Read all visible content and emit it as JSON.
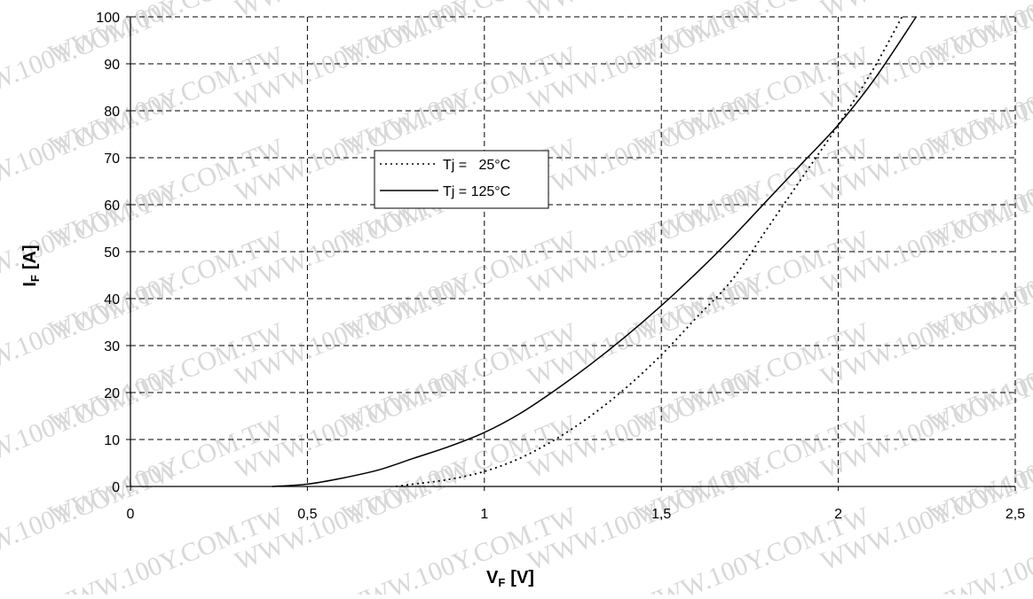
{
  "watermark": "WWW.100Y.COM.TW",
  "chart_data": {
    "type": "line",
    "title": "",
    "xlabel": {
      "main": "V",
      "sub": "F",
      "unit": "[V]"
    },
    "ylabel": {
      "main": "I",
      "sub": "F",
      "unit": "[A]"
    },
    "xlim": [
      0,
      2.5
    ],
    "ylim": [
      0,
      100
    ],
    "x_ticks": [
      "0",
      "0,5",
      "1",
      "1,5",
      "2",
      "2,5"
    ],
    "y_ticks": [
      "0",
      "10",
      "20",
      "30",
      "40",
      "50",
      "60",
      "70",
      "80",
      "90",
      "100"
    ],
    "x_tick_values": [
      0,
      0.5,
      1,
      1.5,
      2,
      2.5
    ],
    "y_tick_values": [
      0,
      10,
      20,
      30,
      40,
      50,
      60,
      70,
      80,
      90,
      100
    ],
    "grid": true,
    "legend_position": "upper-left",
    "series": [
      {
        "name": "Tj =   25°C",
        "style": "dotted",
        "color": "#000000",
        "points": [
          [
            0.75,
            0
          ],
          [
            0.8,
            0.5
          ],
          [
            0.9,
            1.5
          ],
          [
            1.0,
            3.2
          ],
          [
            1.1,
            6.0
          ],
          [
            1.2,
            10.0
          ],
          [
            1.3,
            15.0
          ],
          [
            1.4,
            21.0
          ],
          [
            1.5,
            28.0
          ],
          [
            1.6,
            36.0
          ],
          [
            1.7,
            44.0
          ],
          [
            1.8,
            55.0
          ],
          [
            1.9,
            66.0
          ],
          [
            2.0,
            77.0
          ],
          [
            2.1,
            89.0
          ],
          [
            2.18,
            100.0
          ]
        ]
      },
      {
        "name": "Tj = 125°C",
        "style": "solid",
        "color": "#000000",
        "points": [
          [
            0.4,
            0
          ],
          [
            0.5,
            0.5
          ],
          [
            0.6,
            1.8
          ],
          [
            0.7,
            3.5
          ],
          [
            0.8,
            6.0
          ],
          [
            0.9,
            8.5
          ],
          [
            1.0,
            11.5
          ],
          [
            1.1,
            15.5
          ],
          [
            1.2,
            20.5
          ],
          [
            1.3,
            26.0
          ],
          [
            1.4,
            32.0
          ],
          [
            1.5,
            38.5
          ],
          [
            1.6,
            45.5
          ],
          [
            1.7,
            53.0
          ],
          [
            1.8,
            61.0
          ],
          [
            1.9,
            69.0
          ],
          [
            2.0,
            77.0
          ],
          [
            2.1,
            86.5
          ],
          [
            2.22,
            100.0
          ]
        ]
      }
    ]
  }
}
